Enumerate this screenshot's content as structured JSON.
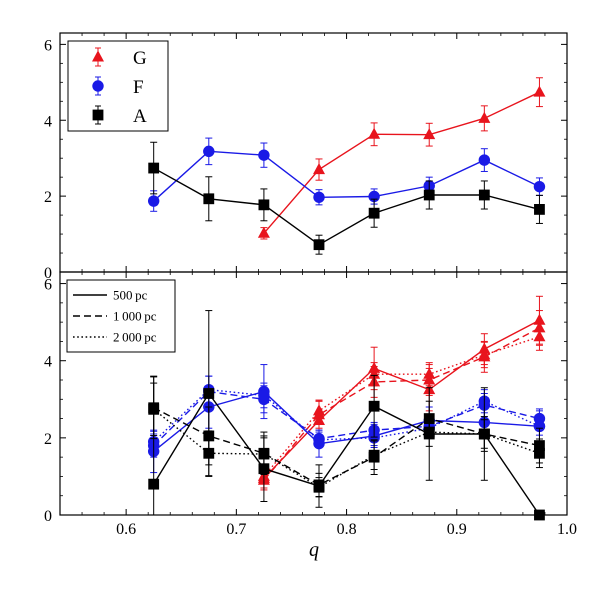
{
  "chart_data": [
    {
      "type": "line",
      "xlabel": "",
      "ylabel": "",
      "xlim": [
        0.54,
        1.0
      ],
      "ylim": [
        0,
        6.3
      ],
      "x_ticks": [
        0.6,
        0.7,
        0.8,
        0.9,
        1.0
      ],
      "x_tick_labels": [],
      "y_ticks": [
        0,
        2,
        4,
        6
      ],
      "y_tick_labels": [
        "0",
        "2",
        "4",
        "6"
      ],
      "grid": false,
      "legend_position": "top-left",
      "series": [
        {
          "name": "G",
          "color": "#e8141d",
          "marker": "triangle",
          "style": "solid",
          "x": [
            0.725,
            0.775,
            0.825,
            0.875,
            0.925,
            0.975
          ],
          "y": [
            1.02,
            2.7,
            3.63,
            3.62,
            4.05,
            4.74
          ],
          "err": [
            0.15,
            0.28,
            0.3,
            0.3,
            0.33,
            0.38
          ]
        },
        {
          "name": "F",
          "color": "#1a1ae6",
          "marker": "circle",
          "style": "solid",
          "x": [
            0.625,
            0.675,
            0.725,
            0.775,
            0.825,
            0.875,
            0.925,
            0.975
          ],
          "y": [
            1.87,
            3.18,
            3.08,
            1.97,
            1.99,
            2.27,
            2.95,
            2.25
          ],
          "err": [
            0.27,
            0.35,
            0.32,
            0.2,
            0.2,
            0.23,
            0.3,
            0.23
          ]
        },
        {
          "name": "A",
          "color": "#000000",
          "marker": "square",
          "style": "solid",
          "x": [
            0.625,
            0.675,
            0.725,
            0.775,
            0.825,
            0.875,
            0.925,
            0.975
          ],
          "y": [
            2.74,
            1.93,
            1.77,
            0.72,
            1.55,
            2.03,
            2.03,
            1.65
          ],
          "err": [
            0.68,
            0.58,
            0.42,
            0.25,
            0.37,
            0.37,
            0.37,
            0.37
          ]
        }
      ]
    },
    {
      "type": "line",
      "xlabel": "q",
      "ylabel": "",
      "xlim": [
        0.54,
        1.0
      ],
      "ylim": [
        0,
        6.3
      ],
      "x_ticks": [
        0.6,
        0.7,
        0.8,
        0.9,
        1.0
      ],
      "x_tick_labels": [
        "0.6",
        "0.7",
        "0.8",
        "0.9",
        "1.0"
      ],
      "y_ticks": [
        0,
        2,
        4,
        6
      ],
      "y_tick_labels": [
        "0",
        "2",
        "4",
        "6"
      ],
      "grid": false,
      "legend_position": "top-left",
      "legend": [
        {
          "label": "500 pc",
          "style": "solid"
        },
        {
          "label": "1 000 pc",
          "style": "dashed"
        },
        {
          "label": "2 000 pc",
          "style": "dotted"
        }
      ],
      "series": [
        {
          "color": "#e8141d",
          "marker": "triangle",
          "style": "solid",
          "x": [
            0.725,
            0.775,
            0.825,
            0.875,
            0.925,
            0.975
          ],
          "y": [
            0.95,
            2.45,
            3.8,
            3.25,
            4.3,
            5.05
          ],
          "err": [
            0.3,
            0.5,
            0.55,
            0.55,
            0.4,
            0.62
          ]
        },
        {
          "color": "#e8141d",
          "marker": "triangle",
          "style": "dashed",
          "x": [
            0.725,
            0.775,
            0.825,
            0.875,
            0.925,
            0.975
          ],
          "y": [
            0.9,
            2.6,
            3.45,
            3.5,
            4.1,
            4.85
          ],
          "err": [
            0.2,
            0.35,
            0.4,
            0.4,
            0.4,
            0.45
          ]
        },
        {
          "color": "#e8141d",
          "marker": "triangle",
          "style": "dotted",
          "x": [
            0.725,
            0.775,
            0.825,
            0.875,
            0.925,
            0.975
          ],
          "y": [
            1.0,
            2.7,
            3.65,
            3.65,
            4.15,
            4.62
          ],
          "err": [
            0.15,
            0.28,
            0.3,
            0.3,
            0.33,
            0.35
          ]
        },
        {
          "color": "#1a1ae6",
          "marker": "circle",
          "style": "solid",
          "x": [
            0.625,
            0.675,
            0.725,
            0.775,
            0.825,
            0.875,
            0.925,
            0.975
          ],
          "y": [
            1.65,
            2.8,
            3.2,
            1.85,
            2.05,
            2.45,
            2.4,
            2.3
          ],
          "err": [
            0.55,
            0.55,
            0.7,
            0.35,
            0.3,
            0.35,
            0.4,
            0.4
          ]
        },
        {
          "color": "#1a1ae6",
          "marker": "circle",
          "style": "dashed",
          "x": [
            0.625,
            0.675,
            0.725,
            0.775,
            0.825,
            0.875,
            0.925,
            0.975
          ],
          "y": [
            1.8,
            3.2,
            3.0,
            1.98,
            2.2,
            2.3,
            2.85,
            2.5
          ],
          "err": [
            0.3,
            0.4,
            0.35,
            0.22,
            0.2,
            0.25,
            0.3,
            0.25
          ]
        },
        {
          "color": "#1a1ae6",
          "marker": "circle",
          "style": "dotted",
          "x": [
            0.625,
            0.675,
            0.725,
            0.775,
            0.825,
            0.875,
            0.925,
            0.975
          ],
          "y": [
            1.9,
            3.25,
            3.1,
            1.95,
            2.0,
            2.25,
            2.95,
            2.3
          ],
          "err": [
            0.27,
            0.35,
            0.32,
            0.2,
            0.2,
            0.23,
            0.3,
            0.23
          ]
        },
        {
          "color": "#000000",
          "marker": "square",
          "style": "solid",
          "x": [
            0.625,
            0.675,
            0.725,
            0.775,
            0.825,
            0.875,
            0.925,
            0.975
          ],
          "y": [
            0.8,
            3.15,
            1.2,
            0.75,
            2.82,
            2.1,
            2.1,
            0.0
          ],
          "err": [
            2.8,
            2.15,
            0.85,
            0.55,
            0.8,
            1.2,
            1.2,
            0.0
          ]
        },
        {
          "color": "#000000",
          "marker": "square",
          "style": "dashed",
          "x": [
            0.625,
            0.675,
            0.725,
            0.775,
            0.825,
            0.875,
            0.925,
            0.975
          ],
          "y": [
            2.78,
            2.05,
            1.6,
            0.78,
            1.5,
            2.5,
            2.1,
            1.8
          ],
          "err": [
            0.8,
            0.75,
            0.55,
            0.3,
            0.45,
            0.45,
            0.45,
            0.45
          ]
        },
        {
          "color": "#000000",
          "marker": "square",
          "style": "dotted",
          "x": [
            0.625,
            0.675,
            0.725,
            0.775,
            0.825,
            0.875,
            0.925,
            0.975
          ],
          "y": [
            2.74,
            1.6,
            1.58,
            0.72,
            1.55,
            2.15,
            2.1,
            1.6
          ],
          "err": [
            0.68,
            0.58,
            0.42,
            0.25,
            0.37,
            0.37,
            0.37,
            0.37
          ]
        }
      ]
    }
  ]
}
